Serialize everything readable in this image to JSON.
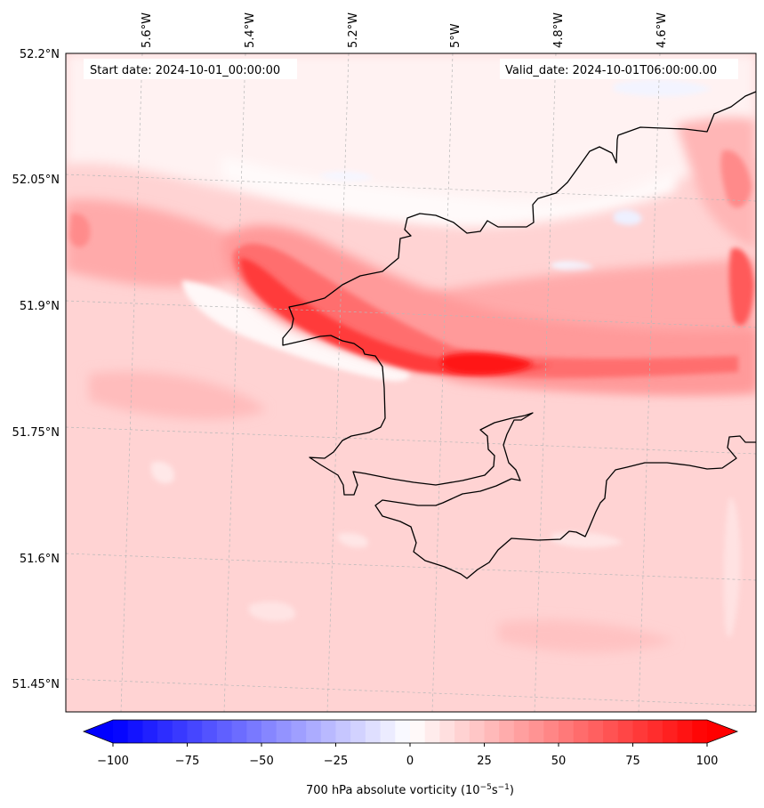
{
  "header": {
    "start_date": "Start date: 2024-10-01_00:00:00",
    "valid_date": "Valid_date: 2024-10-01T06:00:00.00"
  },
  "axes": {
    "lon_ticks": [
      "5.6°W",
      "5.4°W",
      "5.2°W",
      "5°W",
      "4.8°W",
      "4.6°W"
    ],
    "lat_ticks": [
      "52.2°N",
      "52.05°N",
      "51.9°N",
      "51.75°N",
      "51.6°N",
      "51.45°N"
    ]
  },
  "colorbar": {
    "min": -100,
    "max": 100,
    "step": 5,
    "tick_labels": [
      "−100",
      "−75",
      "−50",
      "−25",
      "0",
      "25",
      "50",
      "75",
      "100"
    ],
    "label_main": "700 hPa absolute vorticity (10",
    "label_exp1": "−5",
    "label_mid": "s",
    "label_exp2": "−1",
    "label_end": ")",
    "negative_color": "#0000ff",
    "positive_color": "#ff0000",
    "extend": "both"
  },
  "colors": {
    "background_field": "#ffd1d1",
    "coastline": "#000000",
    "gridline": "#b0b0b0"
  }
}
